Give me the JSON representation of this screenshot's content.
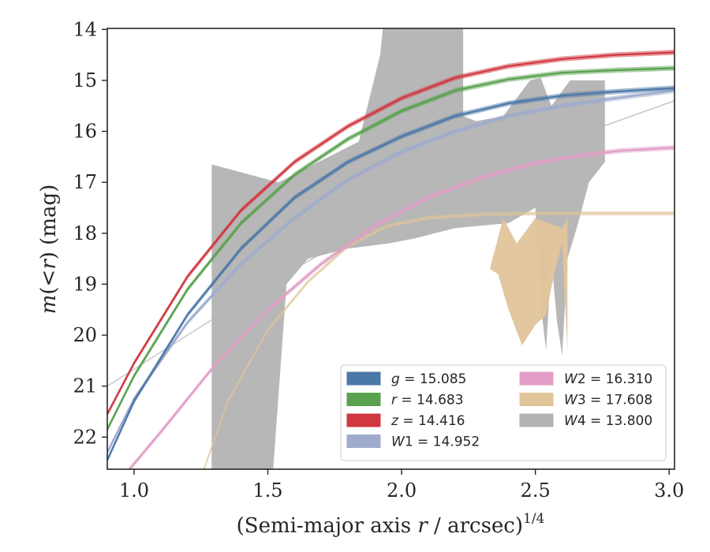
{
  "chart_data": {
    "type": "line",
    "xlabel_main": "(Semi-major axis ",
    "xlabel_r": "r",
    "xlabel_unit": " / arcsec)",
    "xlabel_exp": "1/4",
    "ylabel_m": "m",
    "ylabel_mid": "(<",
    "ylabel_r": "r",
    "ylabel_end": ") (mag)",
    "xlim": [
      0.9,
      3.02
    ],
    "ylim": [
      22.63,
      13.98
    ],
    "y_inverted": true,
    "x_ticks": [
      1.0,
      1.5,
      2.0,
      2.5,
      3.0
    ],
    "x_tick_labels": [
      "1.0",
      "1.5",
      "2.0",
      "2.5",
      "3.0"
    ],
    "y_ticks": [
      14,
      15,
      16,
      17,
      18,
      19,
      20,
      21,
      22
    ],
    "y_tick_labels": [
      "14",
      "15",
      "16",
      "17",
      "18",
      "19",
      "20",
      "21",
      "22"
    ],
    "legend_location": "lower-right",
    "series": [
      {
        "name": "g",
        "value": "15.085",
        "color": "#4c78a8",
        "band": 0.05,
        "x": [
          0.9,
          1.0,
          1.2,
          1.4,
          1.6,
          1.8,
          2.0,
          2.2,
          2.4,
          2.6,
          2.8,
          3.02
        ],
        "y": [
          22.45,
          21.3,
          19.6,
          18.3,
          17.3,
          16.6,
          16.1,
          15.7,
          15.45,
          15.3,
          15.22,
          15.15
        ]
      },
      {
        "name": "r",
        "value": "14.683",
        "color": "#59a14f",
        "band": 0.05,
        "x": [
          0.9,
          1.0,
          1.2,
          1.4,
          1.6,
          1.8,
          2.0,
          2.2,
          2.4,
          2.6,
          2.8,
          3.02
        ],
        "y": [
          21.85,
          20.8,
          19.1,
          17.8,
          16.85,
          16.15,
          15.6,
          15.2,
          14.98,
          14.85,
          14.8,
          14.76
        ]
      },
      {
        "name": "z",
        "value": "14.416",
        "color": "#d1373f",
        "band": 0.05,
        "x": [
          0.9,
          1.0,
          1.2,
          1.4,
          1.6,
          1.8,
          2.0,
          2.2,
          2.4,
          2.6,
          2.8,
          3.02
        ],
        "y": [
          21.55,
          20.55,
          18.85,
          17.55,
          16.6,
          15.9,
          15.35,
          14.95,
          14.72,
          14.58,
          14.5,
          14.45
        ]
      },
      {
        "name": "W1",
        "value": "14.952",
        "color": "#9eabcd",
        "band": 0.05,
        "x": [
          0.9,
          1.0,
          1.2,
          1.4,
          1.6,
          1.8,
          2.0,
          2.2,
          2.4,
          2.6,
          2.8,
          3.02
        ],
        "y": [
          22.3,
          21.25,
          19.75,
          18.6,
          17.7,
          16.95,
          16.4,
          16.0,
          15.7,
          15.5,
          15.35,
          15.2
        ]
      },
      {
        "name": "W2",
        "value": "16.310",
        "color": "#e29ec6",
        "band": 0.05,
        "x": [
          0.98,
          1.1,
          1.3,
          1.5,
          1.7,
          1.9,
          2.1,
          2.3,
          2.5,
          2.7,
          2.82,
          3.02
        ],
        "y": [
          22.65,
          21.9,
          20.6,
          19.5,
          18.6,
          17.85,
          17.3,
          16.9,
          16.62,
          16.45,
          16.38,
          16.32
        ]
      },
      {
        "name": "W3",
        "value": "17.608",
        "color": "#e0c49a",
        "band": 0.04,
        "x": [
          1.26,
          1.35,
          1.5,
          1.65,
          1.8,
          1.95,
          2.1,
          2.3,
          2.5,
          2.7,
          3.02
        ],
        "y": [
          22.65,
          21.3,
          19.9,
          18.95,
          18.25,
          17.85,
          17.7,
          17.63,
          17.61,
          17.61,
          17.61
        ]
      },
      {
        "name": "W4",
        "value": "13.800",
        "color": "#b3b3b3",
        "band": 0.0,
        "x": [
          0.9,
          1.2,
          1.5,
          1.8,
          2.1,
          2.4,
          2.7,
          3.02
        ],
        "y": [
          21.0,
          20.0,
          19.0,
          18.1,
          17.3,
          16.6,
          16.0,
          15.4
        ]
      }
    ],
    "w4_band": {
      "x_upper": [
        1.29,
        1.54,
        1.84,
        1.92,
        1.93,
        2.23,
        2.23,
        2.28,
        2.38,
        2.48,
        2.52,
        2.56,
        2.63,
        2.76,
        2.76
      ],
      "y_upper": [
        16.65,
        17.0,
        16.2,
        14.5,
        13.98,
        13.98,
        15.7,
        15.8,
        15.7,
        15.0,
        14.95,
        15.5,
        15.0,
        15.0,
        16.6
      ],
      "x_lower": [
        2.76,
        2.7,
        2.66,
        2.62,
        2.6,
        2.58,
        2.56,
        2.54,
        2.52,
        2.5,
        2.4,
        2.2,
        2.05,
        1.95,
        1.8,
        1.65,
        1.57,
        1.52,
        1.35,
        1.29
      ],
      "y_lower": [
        16.6,
        17.0,
        17.8,
        18.5,
        20.4,
        19.7,
        18.5,
        20.3,
        19.4,
        17.5,
        17.8,
        17.9,
        18.1,
        18.2,
        18.3,
        18.5,
        19.0,
        22.63,
        22.63,
        22.63
      ],
      "color": "#b3b3b3"
    },
    "w3_band": {
      "x_upper": [
        2.33,
        2.38,
        2.43,
        2.5,
        2.55,
        2.6,
        2.61,
        2.62,
        2.62
      ],
      "y_upper": [
        18.7,
        17.7,
        18.2,
        17.7,
        17.8,
        17.9,
        17.8,
        17.7,
        20.3
      ],
      "x_lower": [
        2.62,
        2.6,
        2.57,
        2.54,
        2.5,
        2.45,
        2.4,
        2.36,
        2.33
      ],
      "y_lower": [
        20.3,
        18.2,
        18.8,
        19.6,
        19.8,
        20.2,
        19.5,
        18.8,
        18.7
      ],
      "color": "#e0c49a"
    }
  }
}
